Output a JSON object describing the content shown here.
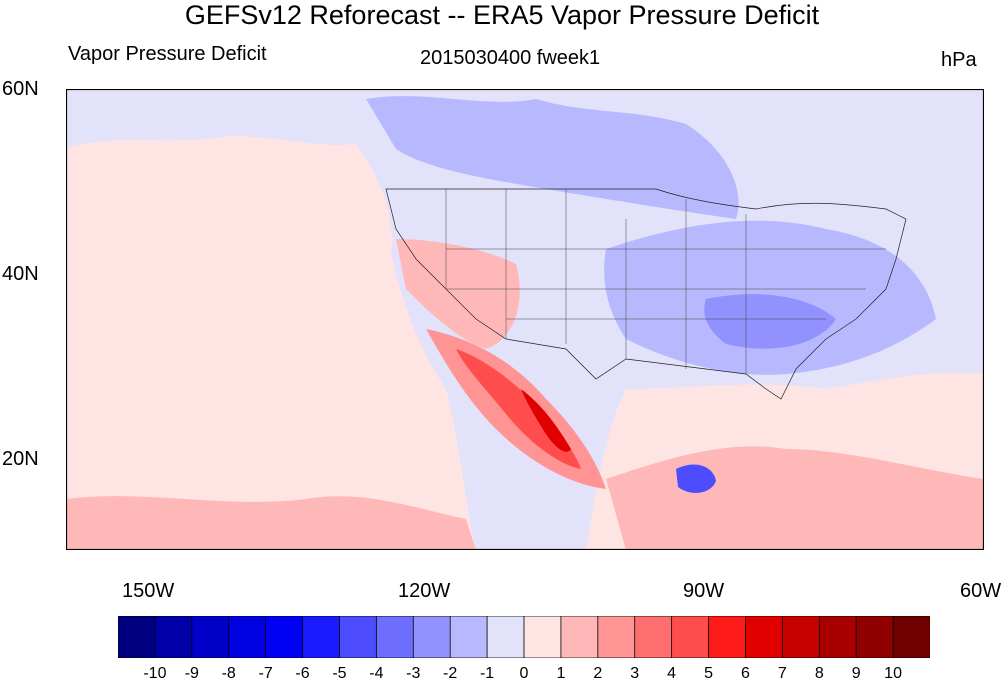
{
  "header": {
    "title": "GEFSv12 Reforecast -- ERA5 Vapor Pressure Deficit",
    "left_subtitle": "Vapor Pressure Deficit",
    "center_subtitle": "2015030400 fweek1",
    "right_subtitle": "hPa"
  },
  "axes": {
    "lat_labels": [
      "60N",
      "40N",
      "20N"
    ],
    "lon_labels": [
      "150W",
      "120W",
      "90W",
      "60W"
    ]
  },
  "colorbar": {
    "labels": [
      "-10",
      "-9",
      "-8",
      "-7",
      "-6",
      "-5",
      "-4",
      "-3",
      "-2",
      "-1",
      "0",
      "1",
      "2",
      "3",
      "4",
      "5",
      "6",
      "7",
      "8",
      "9",
      "10"
    ],
    "colors": [
      "#000080",
      "#0000a8",
      "#0000c8",
      "#0000e0",
      "#0000f5",
      "#1a1aff",
      "#4d4dff",
      "#6f6fff",
      "#9292ff",
      "#b8b8ff",
      "#e2e2fb",
      "#ffe4e4",
      "#ffb8b8",
      "#ff9494",
      "#ff6f6f",
      "#ff4d4d",
      "#ff1a1a",
      "#e00000",
      "#c80000",
      "#a80000",
      "#900000",
      "#700000"
    ]
  },
  "map_colors": {
    "ocean_base": "#e2e2fb",
    "pale_red": "#ffe4e4",
    "light_blue": "#b8b8ff",
    "mid_blue": "#9292ff",
    "strong_blue": "#4d4dff",
    "light_red": "#ffb8b8",
    "mid_red": "#ff9494",
    "strong_red": "#ff4d4d",
    "deep_red": "#e00000"
  }
}
